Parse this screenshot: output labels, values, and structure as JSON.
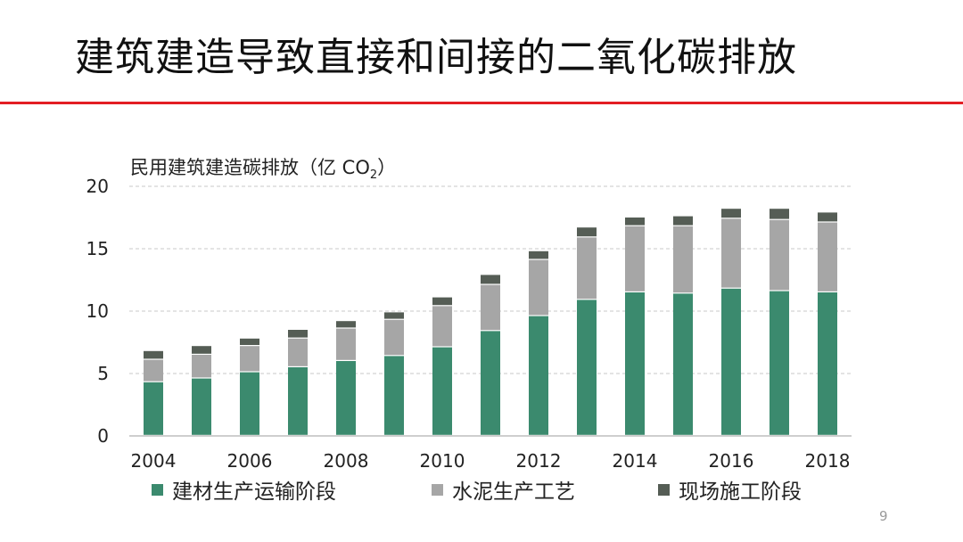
{
  "slide": {
    "title": "建筑建造导致直接和间接的二氧化碳排放",
    "page_number": "9",
    "accent_color": "#e31e24"
  },
  "chart_data": {
    "type": "bar",
    "stacked": true,
    "ylabel_main": "民用建筑建造碳排放（亿 CO",
    "ylabel_sub": "2",
    "ylabel_tail": "）",
    "categories": [
      "2004",
      "2005",
      "2006",
      "2007",
      "2008",
      "2009",
      "2010",
      "2011",
      "2012",
      "2013",
      "2014",
      "2015",
      "2016",
      "2017",
      "2018"
    ],
    "x_tick_labels": [
      "2004",
      "",
      "2006",
      "",
      "2008",
      "",
      "2010",
      "",
      "2012",
      "",
      "2014",
      "",
      "2016",
      "",
      "2018"
    ],
    "y_ticks": [
      "0",
      "5",
      "10",
      "15",
      "20"
    ],
    "ylim": [
      0,
      20
    ],
    "grid": true,
    "legend_position": "bottom",
    "series": [
      {
        "name": "建材生产运输阶段",
        "color": "#3b8a6e",
        "values": [
          4.3,
          4.6,
          5.1,
          5.5,
          6.0,
          6.4,
          7.1,
          8.4,
          9.6,
          10.9,
          11.5,
          11.4,
          11.8,
          11.6,
          11.5
        ]
      },
      {
        "name": "水泥生产工艺",
        "color": "#a6a6a6",
        "values": [
          1.8,
          1.9,
          2.1,
          2.3,
          2.6,
          2.9,
          3.3,
          3.7,
          4.5,
          5.0,
          5.3,
          5.4,
          5.6,
          5.7,
          5.6
        ]
      },
      {
        "name": "现场施工阶段",
        "color": "#555d55",
        "values": [
          0.7,
          0.7,
          0.6,
          0.7,
          0.6,
          0.6,
          0.7,
          0.8,
          0.7,
          0.8,
          0.7,
          0.8,
          0.8,
          0.9,
          0.8
        ]
      }
    ]
  }
}
